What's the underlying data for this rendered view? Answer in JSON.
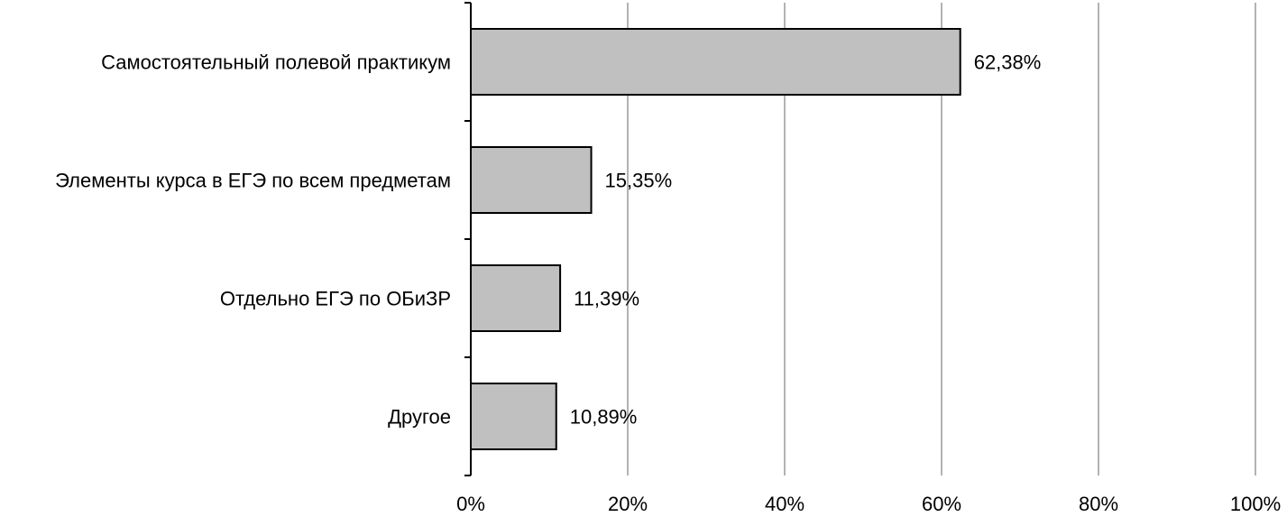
{
  "chart_data": {
    "type": "bar",
    "orientation": "horizontal",
    "categories": [
      "Самостоятельный полевой практикум",
      "Элементы курса в ЕГЭ по всем предметам",
      "Отдельно ЕГЭ по ОБиЗР",
      "Другое"
    ],
    "values": [
      62.38,
      15.35,
      11.39,
      10.89
    ],
    "value_labels": [
      "62,38%",
      "15,35%",
      "11,39%",
      "10,89%"
    ],
    "title": "",
    "xlabel": "",
    "ylabel": "",
    "xlim": [
      0,
      100
    ],
    "x_ticks": [
      0,
      20,
      40,
      60,
      80,
      100
    ],
    "x_tick_labels": [
      "0%",
      "20%",
      "40%",
      "60%",
      "80%",
      "100%"
    ],
    "grid": "vertical",
    "legend": "none",
    "colors": {
      "bar_fill": "#c0c0c0",
      "bar_stroke": "#000000",
      "grid": "#b3b3b3",
      "axis": "#000000"
    }
  }
}
